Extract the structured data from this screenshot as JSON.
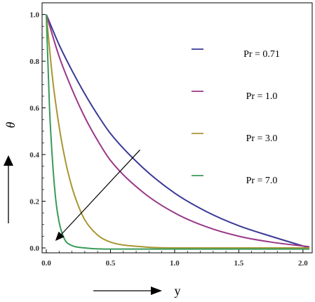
{
  "chart_data": {
    "type": "line",
    "xlabel": "y",
    "ylabel": "θ",
    "xlim": [
      0,
      2.05
    ],
    "ylim": [
      0,
      1.02
    ],
    "x_ticks": [
      "0.0",
      "0.5",
      "1.0",
      "1.5",
      "2.0"
    ],
    "y_ticks": [
      "0.0",
      "0.2",
      "0.4",
      "0.6",
      "0.8",
      "1.0"
    ],
    "grid": false,
    "legend_position": "right",
    "series": [
      {
        "name": "Pr = 0.71",
        "color": "#3a3a96",
        "x": [
          0,
          0.1,
          0.2,
          0.3,
          0.4,
          0.5,
          0.75,
          1.0,
          1.25,
          1.5,
          1.75,
          2.05
        ],
        "y": [
          1.0,
          0.87,
          0.76,
          0.66,
          0.57,
          0.49,
          0.345,
          0.235,
          0.155,
          0.095,
          0.05,
          0.0
        ]
      },
      {
        "name": "Pr = 1.0",
        "color": "#9a3888",
        "x": [
          0,
          0.1,
          0.2,
          0.3,
          0.4,
          0.5,
          0.75,
          1.0,
          1.25,
          1.5,
          1.75,
          2.05
        ],
        "y": [
          1.0,
          0.82,
          0.68,
          0.56,
          0.46,
          0.375,
          0.24,
          0.15,
          0.09,
          0.05,
          0.025,
          0.005
        ]
      },
      {
        "name": "Pr = 3.0",
        "color": "#a89632",
        "x": [
          0,
          0.05,
          0.1,
          0.15,
          0.2,
          0.25,
          0.3,
          0.4,
          0.5,
          0.75,
          1.0,
          1.5,
          2.05
        ],
        "y": [
          1.0,
          0.72,
          0.52,
          0.37,
          0.26,
          0.18,
          0.12,
          0.055,
          0.025,
          0.005,
          0.0,
          0.0,
          0.0
        ]
      },
      {
        "name": "Pr = 7.0",
        "color": "#3a9a5a",
        "x": [
          0,
          0.025,
          0.05,
          0.075,
          0.1,
          0.125,
          0.15,
          0.2,
          0.3,
          0.5,
          1.0,
          2.05
        ],
        "y": [
          1.0,
          0.6,
          0.36,
          0.2,
          0.11,
          0.06,
          0.03,
          0.01,
          0.0,
          -0.005,
          -0.005,
          -0.005
        ]
      }
    ],
    "annotations": [
      {
        "type": "arrow",
        "from": [
          0.73,
          0.42
        ],
        "to": [
          0.07,
          0.03
        ]
      }
    ]
  }
}
